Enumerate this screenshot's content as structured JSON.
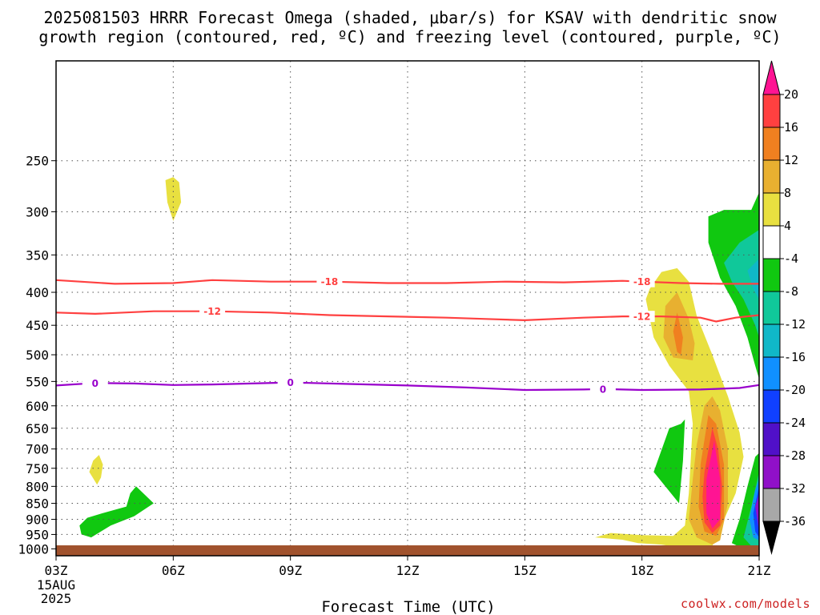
{
  "title_line1": "2025081503 HRRR Forecast Omega (shaded, μbar/s) for KSAV with dendritic snow",
  "title_line2": "growth region (contoured, red, ºC) and freezing level (contoured, purple, ºC)",
  "credit": "coolwx.com/models",
  "chart_data": {
    "type": "heatmap",
    "title": "2025081503 HRRR Forecast Omega (shaded, μbar/s) for KSAV with dendritic snow growth region (contoured, red, ºC) and freezing level (contoured, purple, ºC)",
    "xlabel": "Forecast Time (UTC)",
    "ylabel": "",
    "x_tick_labels": [
      "03Z",
      "06Z",
      "09Z",
      "12Z",
      "15Z",
      "18Z",
      "21Z"
    ],
    "x_date_labels": [
      "15AUG",
      "2025"
    ],
    "x_range_hours": [
      3,
      21
    ],
    "y_scale": "log",
    "y_range_hpa": [
      1025,
      175
    ],
    "y_tick_labels": [
      250,
      300,
      350,
      400,
      450,
      500,
      550,
      600,
      650,
      700,
      750,
      800,
      850,
      900,
      950,
      1000
    ],
    "grid": true,
    "colorbar": {
      "orientation": "vertical",
      "placement": "right",
      "labels": [
        20,
        16,
        12,
        8,
        4,
        -4,
        -8,
        -12,
        -16,
        -20,
        -24,
        -28,
        -32,
        -36
      ],
      "colors": [
        "#ff1493",
        "#ff4040",
        "#f08020",
        "#e8b030",
        "#e8e040",
        "#ffffff",
        "#10c810",
        "#10c89a",
        "#10b8c8",
        "#1090ff",
        "#1040ff",
        "#5010c8",
        "#9010c8",
        "#a8a8a8",
        "#000000"
      ]
    },
    "contours": [
      {
        "name": "dendritic",
        "color": "#ff4040",
        "label": "-18",
        "points": [
          [
            3.0,
            383
          ],
          [
            4.5,
            388
          ],
          [
            6.0,
            387
          ],
          [
            7.0,
            383
          ],
          [
            8.5,
            385
          ],
          [
            10.0,
            385
          ],
          [
            11.5,
            387
          ],
          [
            13.0,
            387
          ],
          [
            14.5,
            385
          ],
          [
            16.0,
            386
          ],
          [
            17.5,
            384
          ],
          [
            18.0,
            385
          ],
          [
            19.0,
            387
          ],
          [
            20.0,
            388
          ],
          [
            21.0,
            388
          ]
        ],
        "label_positions": [
          [
            10.0,
            385
          ],
          [
            18.0,
            385
          ]
        ]
      },
      {
        "name": "dendritic",
        "color": "#ff4040",
        "label": "-12",
        "points": [
          [
            3.0,
            430
          ],
          [
            4.0,
            432
          ],
          [
            5.5,
            428
          ],
          [
            7.0,
            428
          ],
          [
            8.5,
            430
          ],
          [
            10.0,
            434
          ],
          [
            11.5,
            436
          ],
          [
            13.0,
            438
          ],
          [
            14.0,
            440
          ],
          [
            15.0,
            442
          ],
          [
            16.5,
            438
          ],
          [
            17.5,
            436
          ],
          [
            18.5,
            436
          ],
          [
            19.5,
            438
          ],
          [
            19.9,
            444
          ],
          [
            20.4,
            438
          ],
          [
            21.0,
            434
          ]
        ],
        "label_positions": [
          [
            7.0,
            428
          ],
          [
            18.0,
            436
          ]
        ]
      },
      {
        "name": "freezing",
        "color": "#9900cc",
        "label": "0",
        "points": [
          [
            3.0,
            558
          ],
          [
            4.0,
            553
          ],
          [
            5.0,
            554
          ],
          [
            6.0,
            557
          ],
          [
            7.0,
            556
          ],
          [
            8.0,
            554
          ],
          [
            9.0,
            552
          ],
          [
            10.5,
            555
          ],
          [
            12.0,
            558
          ],
          [
            13.5,
            562
          ],
          [
            15.0,
            567
          ],
          [
            16.5,
            566
          ],
          [
            17.0,
            565
          ],
          [
            18.0,
            567
          ],
          [
            19.5,
            566
          ],
          [
            20.5,
            563
          ],
          [
            21.0,
            557
          ]
        ],
        "label_positions": [
          [
            4.0,
            553
          ],
          [
            9.0,
            552
          ],
          [
            17.0,
            565
          ]
        ]
      }
    ],
    "shaded_regions": [
      {
        "value": 4,
        "color": "#e8e040",
        "points": [
          [
            5.8,
            268
          ],
          [
            6.0,
            265
          ],
          [
            6.15,
            270
          ],
          [
            6.2,
            290
          ],
          [
            6.0,
            310
          ],
          [
            5.85,
            290
          ]
        ]
      },
      {
        "value": 4,
        "color": "#e8e040",
        "points": [
          [
            3.95,
            730
          ],
          [
            4.1,
            715
          ],
          [
            4.2,
            740
          ],
          [
            4.15,
            775
          ],
          [
            4.05,
            795
          ],
          [
            3.85,
            760
          ]
        ]
      },
      {
        "value": -4,
        "color": "#10c810",
        "points": [
          [
            3.6,
            920
          ],
          [
            3.8,
            895
          ],
          [
            4.2,
            880
          ],
          [
            4.8,
            860
          ],
          [
            4.9,
            820
          ],
          [
            5.05,
            800
          ],
          [
            5.5,
            850
          ],
          [
            5.0,
            890
          ],
          [
            4.4,
            920
          ],
          [
            3.9,
            960
          ],
          [
            3.65,
            950
          ]
        ]
      },
      {
        "value": -4,
        "color": "#10c810",
        "points": [
          [
            18.3,
            760
          ],
          [
            18.7,
            650
          ],
          [
            19.0,
            640
          ],
          [
            19.1,
            630
          ],
          [
            19.05,
            730
          ],
          [
            18.95,
            850
          ],
          [
            18.6,
            800
          ]
        ]
      },
      {
        "value": 4,
        "color": "#e8e040",
        "points": [
          [
            18.2,
            395
          ],
          [
            18.5,
            372
          ],
          [
            18.9,
            367
          ],
          [
            19.2,
            385
          ],
          [
            19.4,
            435
          ],
          [
            19.8,
            500
          ],
          [
            20.2,
            580
          ],
          [
            20.5,
            660
          ],
          [
            20.6,
            720
          ],
          [
            20.4,
            820
          ],
          [
            20.0,
            930
          ],
          [
            19.8,
            990
          ],
          [
            19.2,
            1000
          ],
          [
            18.5,
            985
          ],
          [
            17.9,
            980
          ],
          [
            17.5,
            968
          ],
          [
            16.8,
            960
          ],
          [
            17.2,
            945
          ],
          [
            18.0,
            952
          ],
          [
            18.8,
            955
          ],
          [
            19.1,
            920
          ],
          [
            19.2,
            820
          ],
          [
            19.3,
            640
          ],
          [
            19.2,
            570
          ],
          [
            18.7,
            520
          ],
          [
            18.3,
            470
          ],
          [
            18.1,
            410
          ]
        ]
      },
      {
        "value": 8,
        "color": "#e8b030",
        "points": [
          [
            18.55,
            470
          ],
          [
            18.6,
            420
          ],
          [
            18.9,
            400
          ],
          [
            19.2,
            440
          ],
          [
            19.35,
            480
          ],
          [
            19.3,
            510
          ],
          [
            18.8,
            505
          ]
        ]
      },
      {
        "value": 8,
        "color": "#e8b030",
        "points": [
          [
            19.4,
            690
          ],
          [
            19.6,
            600
          ],
          [
            19.8,
            580
          ],
          [
            20.0,
            610
          ],
          [
            20.2,
            700
          ],
          [
            20.2,
            850
          ],
          [
            20.0,
            970
          ],
          [
            19.8,
            985
          ],
          [
            19.4,
            960
          ],
          [
            19.2,
            900
          ],
          [
            19.3,
            780
          ]
        ]
      },
      {
        "value": 12,
        "color": "#f08020",
        "points": [
          [
            18.8,
            460
          ],
          [
            18.9,
            430
          ],
          [
            19.05,
            470
          ],
          [
            19.0,
            500
          ],
          [
            18.9,
            495
          ]
        ]
      },
      {
        "value": 12,
        "color": "#f08020",
        "points": [
          [
            19.5,
            740
          ],
          [
            19.7,
            620
          ],
          [
            19.9,
            640
          ],
          [
            20.1,
            740
          ],
          [
            20.1,
            900
          ],
          [
            19.9,
            955
          ],
          [
            19.6,
            940
          ],
          [
            19.45,
            860
          ]
        ]
      },
      {
        "value": 16,
        "color": "#ff4040",
        "points": [
          [
            19.6,
            760
          ],
          [
            19.8,
            650
          ],
          [
            19.95,
            700
          ],
          [
            20.05,
            800
          ],
          [
            20.0,
            920
          ],
          [
            19.8,
            945
          ],
          [
            19.6,
            910
          ],
          [
            19.55,
            830
          ]
        ]
      },
      {
        "value": 20,
        "color": "#ff1493",
        "points": [
          [
            19.65,
            780
          ],
          [
            19.85,
            680
          ],
          [
            20.0,
            780
          ],
          [
            20.0,
            900
          ],
          [
            19.8,
            930
          ],
          [
            19.65,
            880
          ]
        ]
      },
      {
        "value": -4,
        "color": "#10c810",
        "points": [
          [
            20.8,
            298
          ],
          [
            21.0,
            280
          ],
          [
            21.0,
            545
          ],
          [
            20.9,
            520
          ],
          [
            20.7,
            470
          ],
          [
            20.4,
            420
          ],
          [
            20.0,
            380
          ],
          [
            19.7,
            335
          ],
          [
            19.7,
            305
          ],
          [
            20.1,
            298
          ]
        ]
      },
      {
        "value": -8,
        "color": "#10c89a",
        "points": [
          [
            20.1,
            360
          ],
          [
            20.5,
            335
          ],
          [
            21.0,
            320
          ],
          [
            21.0,
            470
          ],
          [
            20.9,
            450
          ],
          [
            20.6,
            410
          ],
          [
            20.3,
            385
          ]
        ]
      },
      {
        "value": -12,
        "color": "#10b8c8",
        "points": [
          [
            20.7,
            370
          ],
          [
            21.0,
            355
          ],
          [
            21.0,
            410
          ],
          [
            20.85,
            395
          ]
        ]
      },
      {
        "value": -4,
        "color": "#10c810",
        "points": [
          [
            20.3,
            980
          ],
          [
            20.5,
            900
          ],
          [
            20.7,
            800
          ],
          [
            20.9,
            720
          ],
          [
            21.0,
            710
          ],
          [
            21.0,
            1000
          ],
          [
            20.6,
            1000
          ]
        ]
      },
      {
        "value": -8,
        "color": "#10c89a",
        "points": [
          [
            20.6,
            960
          ],
          [
            20.8,
            860
          ],
          [
            21.0,
            760
          ],
          [
            21.0,
            990
          ],
          [
            20.8,
            990
          ]
        ]
      },
      {
        "value": -16,
        "color": "#1090ff",
        "points": [
          [
            20.75,
            900
          ],
          [
            20.9,
            810
          ],
          [
            21.0,
            780
          ],
          [
            21.0,
            970
          ],
          [
            20.85,
            960
          ]
        ]
      },
      {
        "value": -24,
        "color": "#1040ff",
        "points": [
          [
            20.85,
            880
          ],
          [
            21.0,
            800
          ],
          [
            21.0,
            960
          ],
          [
            20.9,
            940
          ]
        ]
      },
      {
        "value": -32,
        "color": "#9010c8",
        "points": [
          [
            20.9,
            860
          ],
          [
            21.0,
            820
          ],
          [
            21.0,
            940
          ]
        ]
      }
    ],
    "ground_color": "#a0522d"
  }
}
